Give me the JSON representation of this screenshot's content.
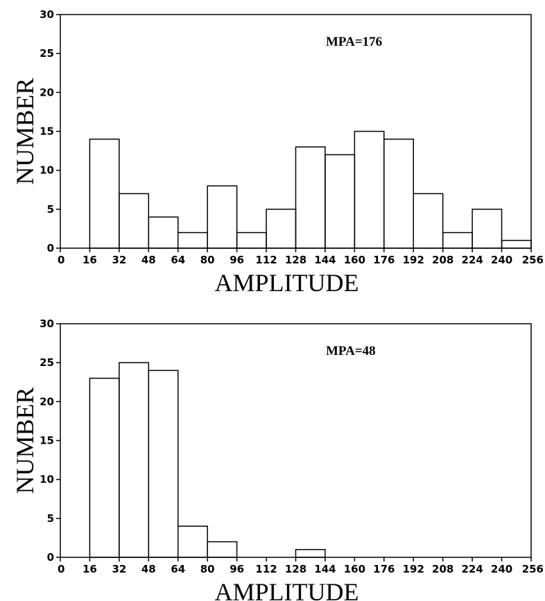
{
  "chart_data": [
    {
      "type": "bar",
      "xlabel": "AMPLITUDE",
      "ylabel": "NUMBER",
      "annotation": "MPA=176",
      "xlim": [
        0,
        256
      ],
      "ylim": [
        0,
        30
      ],
      "xticks": [
        "0",
        "16",
        "32",
        "48",
        "64",
        "80",
        "96",
        "112",
        "128",
        "144",
        "160",
        "176",
        "192",
        "208",
        "224",
        "240",
        "256"
      ],
      "yticks": [
        "0",
        "5",
        "10",
        "15",
        "20",
        "25",
        "30"
      ],
      "bin_edges": [
        16,
        32,
        48,
        64,
        80,
        96,
        112,
        128,
        144,
        160,
        176,
        192,
        208,
        224,
        240,
        256
      ],
      "values": [
        14,
        7,
        4,
        2,
        8,
        2,
        5,
        13,
        12,
        15,
        14,
        7,
        2,
        5,
        1
      ],
      "grid": false
    },
    {
      "type": "bar",
      "xlabel": "AMPLITUDE",
      "ylabel": "NUMBER",
      "annotation": "MPA=48",
      "xlim": [
        0,
        256
      ],
      "ylim": [
        0,
        30
      ],
      "xticks": [
        "0",
        "16",
        "32",
        "48",
        "64",
        "80",
        "96",
        "112",
        "128",
        "144",
        "160",
        "176",
        "192",
        "208",
        "224",
        "240",
        "256"
      ],
      "yticks": [
        "0",
        "5",
        "10",
        "15",
        "20",
        "25",
        "30"
      ],
      "bin_edges": [
        16,
        32,
        48,
        64,
        80,
        96,
        112,
        128,
        144,
        160,
        176,
        192,
        208,
        224,
        240,
        256
      ],
      "values": [
        23,
        25,
        24,
        4,
        2,
        0,
        0,
        1,
        0,
        0,
        0,
        0,
        0,
        0,
        0
      ],
      "grid": false
    }
  ]
}
